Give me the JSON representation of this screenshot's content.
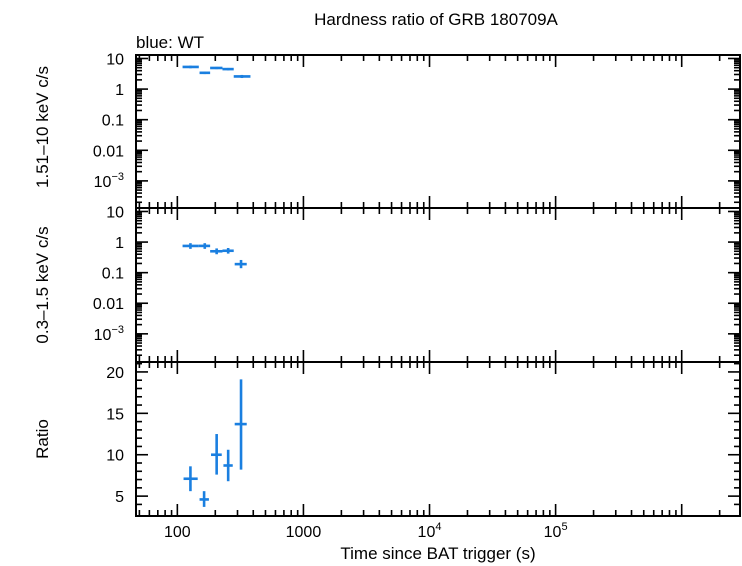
{
  "chart_data": {
    "type": "scatter",
    "title": "Hardness ratio of GRB 180709A",
    "legend": "blue: WT",
    "xlabel": "Time since BAT trigger (s)",
    "xscale": "log",
    "xlim": [
      47,
      2900000
    ],
    "x_ticks": [
      {
        "v": 100,
        "t": "100",
        "sup": ""
      },
      {
        "v": 1000,
        "t": "1000",
        "sup": ""
      },
      {
        "v": 10000,
        "t": "10",
        "sup": "4"
      },
      {
        "v": 100000,
        "t": "10",
        "sup": "5"
      }
    ],
    "color": "#1a7fe0",
    "panels": [
      {
        "ylabel": "1.51–10 keV c/s",
        "yscale": "log",
        "ylim": [
          0.00013,
          13
        ],
        "y_ticks": [
          {
            "v": 10,
            "t": "10",
            "sup": ""
          },
          {
            "v": 1,
            "t": "1",
            "sup": ""
          },
          {
            "v": 0.1,
            "t": "0.1",
            "sup": ""
          },
          {
            "v": 0.01,
            "t": "0.01",
            "sup": ""
          },
          {
            "v": 0.001,
            "t": "10",
            "sup": "−3"
          }
        ],
        "points": [
          {
            "x": 127,
            "xlo": 110,
            "xhi": 148,
            "y": 5.3,
            "ylo": 4.8,
            "yhi": 5.8
          },
          {
            "x": 165,
            "xlo": 150,
            "xhi": 182,
            "y": 3.4,
            "ylo": 3.1,
            "yhi": 3.7
          },
          {
            "x": 205,
            "xlo": 182,
            "xhi": 228,
            "y": 4.9,
            "ylo": 4.5,
            "yhi": 5.3
          },
          {
            "x": 253,
            "xlo": 228,
            "xhi": 280,
            "y": 4.5,
            "ylo": 4.1,
            "yhi": 4.9
          },
          {
            "x": 325,
            "xlo": 280,
            "xhi": 380,
            "y": 2.6,
            "ylo": 2.3,
            "yhi": 2.9
          }
        ]
      },
      {
        "ylabel": "0.3–1.5 keV c/s",
        "yscale": "log",
        "ylim": [
          0.00012,
          13
        ],
        "y_ticks": [
          {
            "v": 10,
            "t": "10",
            "sup": ""
          },
          {
            "v": 1,
            "t": "1",
            "sup": ""
          },
          {
            "v": 0.1,
            "t": "0.1",
            "sup": ""
          },
          {
            "v": 0.01,
            "t": "0.01",
            "sup": ""
          },
          {
            "v": 0.001,
            "t": "10",
            "sup": "−3"
          }
        ],
        "points": [
          {
            "x": 127,
            "xlo": 110,
            "xhi": 148,
            "y": 0.75,
            "ylo": 0.6,
            "yhi": 0.92
          },
          {
            "x": 165,
            "xlo": 148,
            "xhi": 182,
            "y": 0.75,
            "ylo": 0.6,
            "yhi": 0.92
          },
          {
            "x": 205,
            "xlo": 182,
            "xhi": 228,
            "y": 0.5,
            "ylo": 0.4,
            "yhi": 0.62
          },
          {
            "x": 253,
            "xlo": 228,
            "xhi": 280,
            "y": 0.52,
            "ylo": 0.42,
            "yhi": 0.64
          },
          {
            "x": 320,
            "xlo": 285,
            "xhi": 355,
            "y": 0.19,
            "ylo": 0.14,
            "yhi": 0.26
          }
        ]
      },
      {
        "ylabel": "Ratio",
        "yscale": "linear",
        "ylim": [
          2.6,
          21.2
        ],
        "y_ticks": [
          {
            "v": 20,
            "t": "20",
            "sup": ""
          },
          {
            "v": 15,
            "t": "15",
            "sup": ""
          },
          {
            "v": 10,
            "t": "10",
            "sup": ""
          },
          {
            "v": 5,
            "t": "5",
            "sup": ""
          }
        ],
        "points": [
          {
            "x": 127,
            "xlo": 112,
            "xhi": 145,
            "y": 7.1,
            "ylo": 5.6,
            "yhi": 8.6
          },
          {
            "x": 163,
            "xlo": 150,
            "xhi": 178,
            "y": 4.6,
            "ylo": 3.7,
            "yhi": 5.6
          },
          {
            "x": 205,
            "xlo": 185,
            "xhi": 225,
            "y": 10.0,
            "ylo": 7.6,
            "yhi": 12.5
          },
          {
            "x": 253,
            "xlo": 232,
            "xhi": 275,
            "y": 8.7,
            "ylo": 6.8,
            "yhi": 10.6
          },
          {
            "x": 320,
            "xlo": 285,
            "xhi": 355,
            "y": 13.7,
            "ylo": 8.2,
            "yhi": 19.1
          }
        ]
      }
    ]
  }
}
